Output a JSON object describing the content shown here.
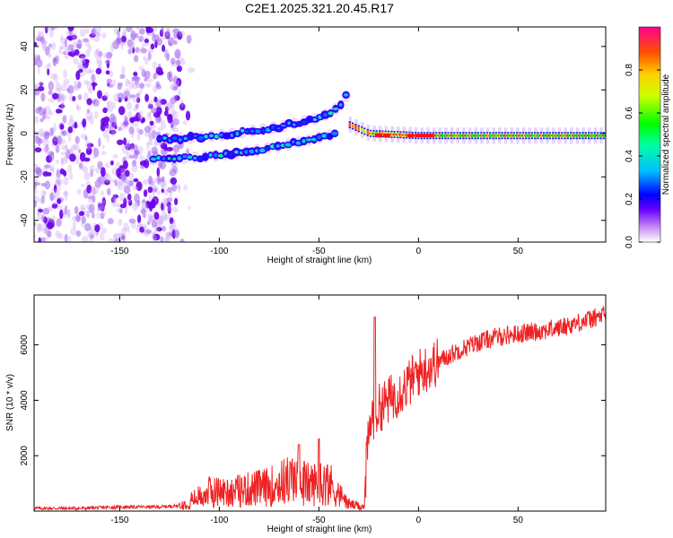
{
  "title": "C2E1.2025.321.20.45.R17",
  "colors": {
    "snr_line": "#ee2222",
    "axes": "#000000",
    "background": "#ffffff"
  },
  "chart_data": [
    {
      "name": "spectrogram",
      "type": "heatmap",
      "xlabel": "Height of straight line (km)",
      "ylabel": "Frequency (Hz)",
      "xlim": [
        -193,
        94
      ],
      "ylim": [
        -50,
        49
      ],
      "xticks": [
        -150,
        -100,
        -50,
        0,
        50
      ],
      "xtick_labels": [
        "-150",
        "-100",
        "-50",
        "0",
        "50"
      ],
      "yticks": [
        -40,
        -20,
        0,
        20,
        40
      ],
      "ytick_labels": [
        "-40",
        "-20",
        "0",
        "20",
        "40"
      ],
      "colorbar": {
        "label": "Normalized spectral amplitude",
        "range": [
          0,
          1
        ],
        "ticks": [
          0.0,
          0.2,
          0.4,
          0.6,
          0.8
        ],
        "tick_labels": [
          "0.0",
          "0.2",
          "0.4",
          "0.6",
          "0.8"
        ],
        "colormap": "rainbow"
      },
      "features": [
        {
          "name": "noise region",
          "x_range": [
            -193,
            -120
          ],
          "y_range": [
            -50,
            49
          ],
          "amplitude": 0.05
        },
        {
          "name": "upper branch",
          "points": [
            [
              -130,
              -3
            ],
            [
              -100,
              -1
            ],
            [
              -70,
              3
            ],
            [
              -50,
              7
            ],
            [
              -40,
              12
            ],
            [
              -35,
              19
            ]
          ],
          "amplitude": 0.3
        },
        {
          "name": "lower branch",
          "points": [
            [
              -133,
              -12
            ],
            [
              -110,
              -11
            ],
            [
              -90,
              -9
            ],
            [
              -70,
              -6
            ],
            [
              -55,
              -3
            ],
            [
              -40,
              0
            ]
          ],
          "amplitude": 0.3
        },
        {
          "name": "converged trace",
          "points": [
            [
              -35,
              4
            ],
            [
              -25,
              0
            ],
            [
              0,
              -1
            ],
            [
              10,
              -1
            ],
            [
              50,
              -1
            ],
            [
              94,
              -1
            ]
          ],
          "amplitude": 0.95
        }
      ]
    },
    {
      "name": "snr",
      "type": "line",
      "xlabel": "Height of straight line (km)",
      "ylabel": "SNR (10 * v/v)",
      "xlim": [
        -193,
        94
      ],
      "ylim": [
        0,
        7800
      ],
      "xticks": [
        -150,
        -100,
        -50,
        0,
        50
      ],
      "xtick_labels": [
        "-150",
        "-100",
        "-50",
        "0",
        "50"
      ],
      "yticks": [
        2000,
        4000,
        6000
      ],
      "ytick_labels": [
        "2000",
        "4000",
        "6000"
      ],
      "series": [
        {
          "name": "SNR",
          "x": [
            -193,
            -170,
            -150,
            -130,
            -120,
            -115,
            -105,
            -95,
            -85,
            -75,
            -65,
            -60,
            -55,
            -45,
            -40,
            -35,
            -30,
            -27,
            -26,
            -24,
            -23,
            -22,
            -20,
            -15,
            -10,
            -5,
            0,
            10,
            20,
            30,
            40,
            50,
            60,
            70,
            80,
            90,
            94
          ],
          "values": [
            100,
            100,
            150,
            150,
            200,
            400,
            800,
            800,
            900,
            1000,
            1300,
            1300,
            1100,
            1200,
            700,
            300,
            200,
            200,
            2000,
            3200,
            3500,
            3400,
            3700,
            4000,
            4300,
            4600,
            5000,
            5400,
            5800,
            6100,
            6300,
            6400,
            6500,
            6600,
            6800,
            7000,
            7100
          ],
          "notable_peaks": [
            [
              -22,
              7000
            ],
            [
              -60,
              2400
            ],
            [
              -50,
              2600
            ]
          ],
          "noise": "high-frequency jitter around the trend"
        }
      ]
    }
  ]
}
